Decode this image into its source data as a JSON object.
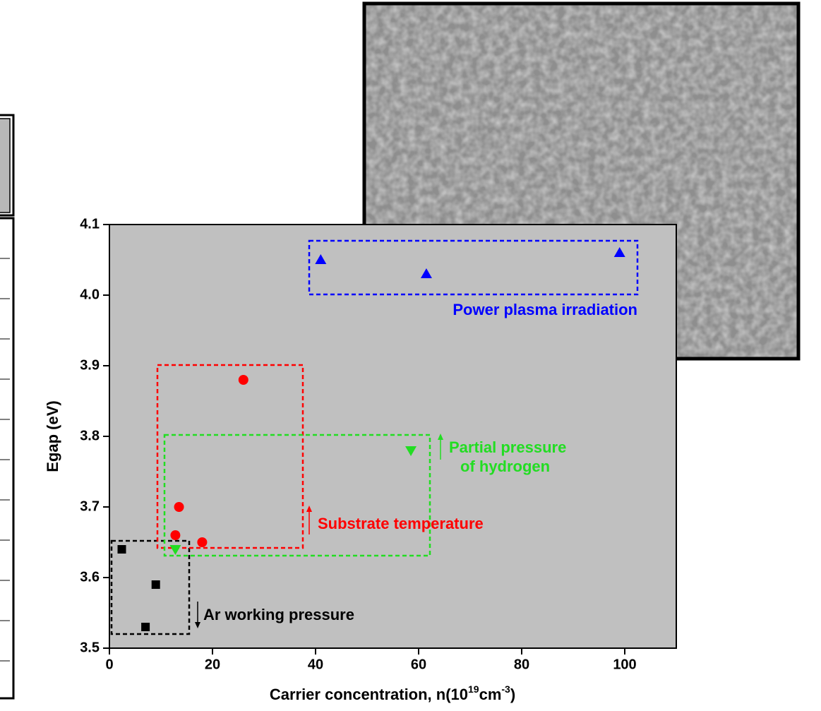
{
  "chart_data": {
    "type": "scatter",
    "xlabel_parts": [
      "Carrier concentration, n(10",
      "19",
      "cm",
      "-3",
      ")"
    ],
    "ylabel": "Egap (eV)",
    "xlim": [
      0,
      110
    ],
    "ylim": [
      3.5,
      4.1
    ],
    "xticks": [
      0,
      20,
      40,
      60,
      80,
      100
    ],
    "yticks": [
      3.5,
      3.6,
      3.7,
      3.8,
      3.9,
      {
        "value": 4,
        "label": "4.0"
      },
      4.1
    ],
    "background": "#c0c0c0",
    "series": [
      {
        "name": "Ar working pressure",
        "color": "#000000",
        "marker": "square",
        "x": [
          2.4,
          9,
          7
        ],
        "values": [
          3.64,
          3.59,
          3.53
        ]
      },
      {
        "name": "Substrate temperature",
        "color": "#ff0000",
        "marker": "circle",
        "x": [
          26,
          13.5,
          12.8,
          18
        ],
        "values": [
          3.88,
          3.7,
          3.66,
          3.65
        ]
      },
      {
        "name": "Partial pressure\nof hydrogen",
        "color": "#22dd22",
        "marker": "triangle-down",
        "x": [
          58.5,
          12.8
        ],
        "values": [
          3.78,
          3.64
        ]
      },
      {
        "name": "Power plasma irradiation",
        "color": "#0000ff",
        "marker": "triangle-up",
        "x": [
          41,
          61.5,
          99
        ],
        "values": [
          4.05,
          4.03,
          4.06
        ]
      }
    ]
  }
}
